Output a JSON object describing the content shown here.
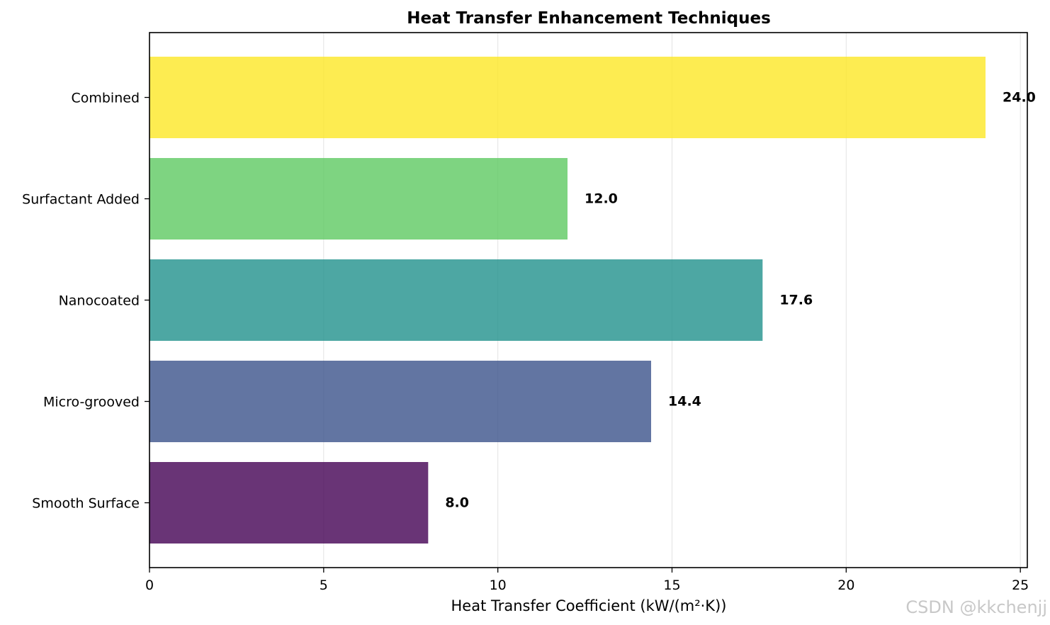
{
  "chart_data": {
    "type": "bar",
    "orientation": "horizontal",
    "title": "Heat Transfer Enhancement Techniques",
    "xlabel": "Heat Transfer Coefficient (kW/(m²·K))",
    "ylabel": "",
    "categories": [
      "Smooth Surface",
      "Micro-grooved",
      "Nanocoated",
      "Surfactant Added",
      "Combined"
    ],
    "values": [
      8.0,
      14.4,
      17.6,
      12.0,
      24.0
    ],
    "value_labels": [
      "8.0",
      "14.4",
      "17.6",
      "12.0",
      "24.0"
    ],
    "colors": [
      "#440154",
      "#3b528b",
      "#21918c",
      "#5ec962",
      "#fde725"
    ],
    "bar_alpha": 0.8,
    "xlim": [
      0,
      25.2
    ],
    "xticks": [
      0,
      5,
      10,
      15,
      20,
      25
    ],
    "xtick_labels": [
      "0",
      "5",
      "10",
      "15",
      "20",
      "25"
    ],
    "grid": "x"
  },
  "watermark": "CSDN @kkchenjj"
}
